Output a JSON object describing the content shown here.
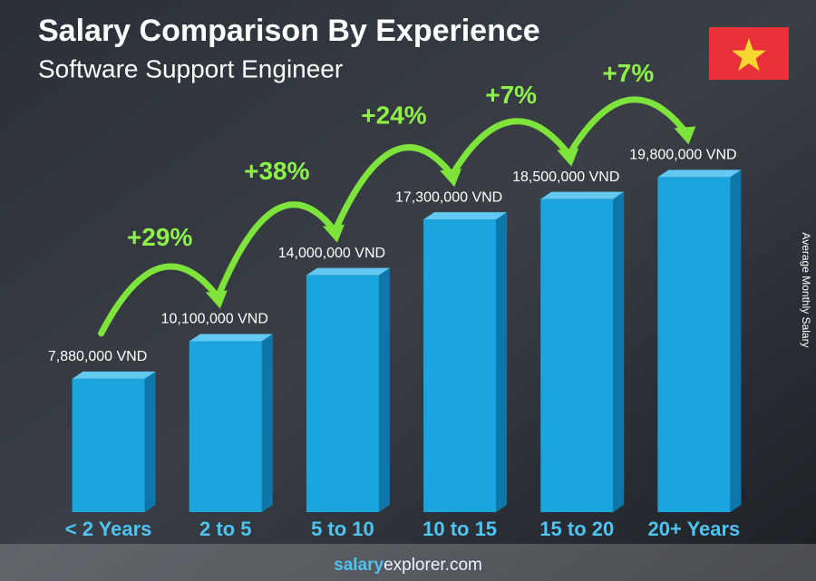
{
  "chart_data": {
    "type": "bar",
    "title": "Salary Comparison By Experience",
    "subtitle": "Software Support Engineer",
    "y_label": "Average Monthly Salary",
    "categories": [
      "< 2 Years",
      "2 to 5",
      "5 to 10",
      "10 to 15",
      "15 to 20",
      "20+ Years"
    ],
    "values": [
      7880000,
      10100000,
      14000000,
      17300000,
      18500000,
      19800000
    ],
    "value_labels": [
      "7,880,000 VND",
      "10,100,000 VND",
      "14,000,000 VND",
      "17,300,000 VND",
      "18,500,000 VND",
      "19,800,000 VND"
    ],
    "changes": [
      "+29%",
      "+38%",
      "+24%",
      "+7%",
      "+7%"
    ],
    "color": "#1ba4de",
    "ylim": [
      0,
      21000000
    ],
    "source": [
      "salary",
      "explorer.com"
    ]
  }
}
